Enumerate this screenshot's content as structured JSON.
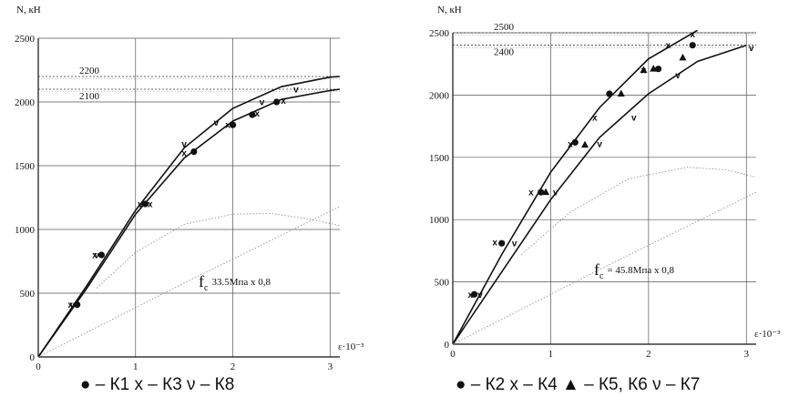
{
  "chart_data": [
    {
      "type": "line",
      "ylabel": "N, кН",
      "xlabel": "ε·10⁻³",
      "xlim": [
        0,
        3.1
      ],
      "ylim": [
        0,
        2500
      ],
      "xticks": [
        0,
        1,
        2,
        3
      ],
      "yticks": [
        0,
        500,
        1000,
        1500,
        2000,
        2500
      ],
      "grid": true,
      "reference_lines": [
        {
          "y": 2200,
          "label": "2200"
        },
        {
          "y": 2100,
          "label": "2100"
        }
      ],
      "annotation": {
        "symbol": "fc",
        "text": "33.5Мпа х 0,8"
      },
      "legend_text": "● – К1  х – К3  ν –  К8",
      "series": [
        {
          "name": "К1",
          "marker": "●",
          "x": [
            0.4,
            0.65,
            1.1,
            1.6,
            2.0,
            2.2,
            2.45
          ],
          "y": [
            410,
            800,
            1200,
            1610,
            1820,
            1900,
            2000
          ]
        },
        {
          "name": "К3",
          "marker": "x",
          "x": [
            0.33,
            0.58,
            1.15,
            1.5,
            1.95,
            2.25,
            2.52
          ],
          "y": [
            410,
            800,
            1200,
            1600,
            1820,
            1910,
            2010
          ]
        },
        {
          "name": "К8",
          "marker": "v",
          "x": [
            0.35,
            0.6,
            1.05,
            1.5,
            1.83,
            2.3,
            2.65
          ],
          "y": [
            410,
            800,
            1200,
            1670,
            1840,
            2000,
            2100
          ]
        },
        {
          "name": "envelope-upper",
          "x": [
            0,
            0.5,
            1.0,
            1.5,
            2.0,
            2.5,
            3.0,
            3.1
          ],
          "y": [
            0,
            560,
            1150,
            1640,
            1950,
            2120,
            2195,
            2200
          ]
        },
        {
          "name": "envelope-lower",
          "x": [
            0,
            0.5,
            1.0,
            1.5,
            2.0,
            2.5,
            3.0,
            3.1
          ],
          "y": [
            0,
            540,
            1120,
            1560,
            1850,
            2020,
            2090,
            2100
          ]
        },
        {
          "name": "concrete-curve",
          "x": [
            0.6,
            1.0,
            1.5,
            2.0,
            2.4,
            2.8,
            3.1
          ],
          "y": [
            540,
            820,
            1040,
            1120,
            1125,
            1080,
            1030
          ]
        },
        {
          "name": "linear-line",
          "x": [
            0,
            1.5,
            3.1
          ],
          "y": [
            0,
            580,
            1180
          ]
        }
      ]
    },
    {
      "type": "line",
      "ylabel": "N, кН",
      "xlabel": "ε·10⁻³",
      "xlim": [
        0,
        3.1
      ],
      "ylim": [
        0,
        2500
      ],
      "xticks": [
        0,
        1,
        2,
        3
      ],
      "yticks": [
        0,
        500,
        1000,
        1500,
        2000,
        2500
      ],
      "grid": true,
      "reference_lines": [
        {
          "y": 2500,
          "label": "2500"
        },
        {
          "y": 2400,
          "label": "2400"
        }
      ],
      "annotation": {
        "symbol": "fc",
        "text": "= 45.8Мпа х 0,8"
      },
      "legend_text": "● – К2  х – К4  ▲ – К5, К6  ν – К7",
      "series": [
        {
          "name": "К2",
          "marker": "●",
          "x": [
            0.22,
            0.5,
            0.9,
            1.25,
            1.6,
            2.1,
            2.45
          ],
          "y": [
            400,
            810,
            1220,
            1620,
            2010,
            2210,
            2400
          ]
        },
        {
          "name": "К4",
          "marker": "x",
          "x": [
            0.18,
            0.43,
            0.8,
            1.2,
            1.45,
            1.95,
            2.2,
            2.45
          ],
          "y": [
            400,
            820,
            1220,
            1610,
            1820,
            2200,
            2400,
            2490
          ]
        },
        {
          "name": "К5, К6",
          "marker": "▲",
          "x": [
            0.95,
            1.35,
            1.72,
            1.95,
            2.05,
            2.35
          ],
          "y": [
            1220,
            1600,
            2010,
            2200,
            2210,
            2300
          ]
        },
        {
          "name": "К7",
          "marker": "v",
          "x": [
            0.28,
            0.63,
            1.05,
            1.5,
            1.85,
            2.3,
            3.05
          ],
          "y": [
            400,
            810,
            1220,
            1610,
            1820,
            2160,
            2380
          ]
        },
        {
          "name": "envelope-upper",
          "x": [
            0,
            0.5,
            1.0,
            1.5,
            2.0,
            2.5
          ],
          "y": [
            0,
            720,
            1380,
            1900,
            2290,
            2520
          ]
        },
        {
          "name": "envelope-lower",
          "x": [
            0,
            0.5,
            1.0,
            1.5,
            2.0,
            2.5,
            3.0
          ],
          "y": [
            0,
            580,
            1160,
            1660,
            2010,
            2270,
            2400
          ]
        },
        {
          "name": "concrete-curve",
          "x": [
            0.7,
            1.2,
            1.8,
            2.4,
            2.8,
            3.1
          ],
          "y": [
            720,
            1060,
            1330,
            1420,
            1400,
            1340
          ]
        },
        {
          "name": "linear-line",
          "x": [
            0,
            1.5,
            3.1
          ],
          "y": [
            0,
            600,
            1220
          ]
        }
      ]
    }
  ]
}
